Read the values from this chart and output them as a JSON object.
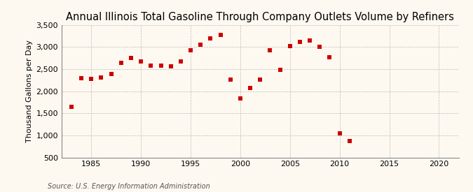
{
  "title": "Annual Illinois Total Gasoline Through Company Outlets Volume by Refiners",
  "ylabel": "Thousand Gallons per Day",
  "source": "Source: U.S. Energy Information Administration",
  "background_color": "#fef9f0",
  "marker_color": "#cc0000",
  "years": [
    1983,
    1984,
    1985,
    1986,
    1987,
    1988,
    1989,
    1990,
    1991,
    1992,
    1993,
    1994,
    1995,
    1996,
    1997,
    1998,
    1999,
    2000,
    2001,
    2002,
    2003,
    2004,
    2005,
    2006,
    2007,
    2008,
    2009,
    2010,
    2011
  ],
  "values": [
    1650,
    2300,
    2280,
    2310,
    2390,
    2650,
    2760,
    2680,
    2580,
    2580,
    2560,
    2670,
    2920,
    3060,
    3200,
    3270,
    2270,
    1840,
    2080,
    2270,
    2920,
    2490,
    3020,
    3110,
    3150,
    3000,
    2770,
    1040,
    870
  ],
  "xlim": [
    1982,
    2022
  ],
  "ylim": [
    500,
    3500
  ],
  "yticks": [
    500,
    1000,
    1500,
    2000,
    2500,
    3000,
    3500
  ],
  "xticks": [
    1985,
    1990,
    1995,
    2000,
    2005,
    2010,
    2015,
    2020
  ],
  "grid_color": "#bbbbbb",
  "title_fontsize": 10.5,
  "label_fontsize": 8,
  "tick_fontsize": 8,
  "source_fontsize": 7
}
